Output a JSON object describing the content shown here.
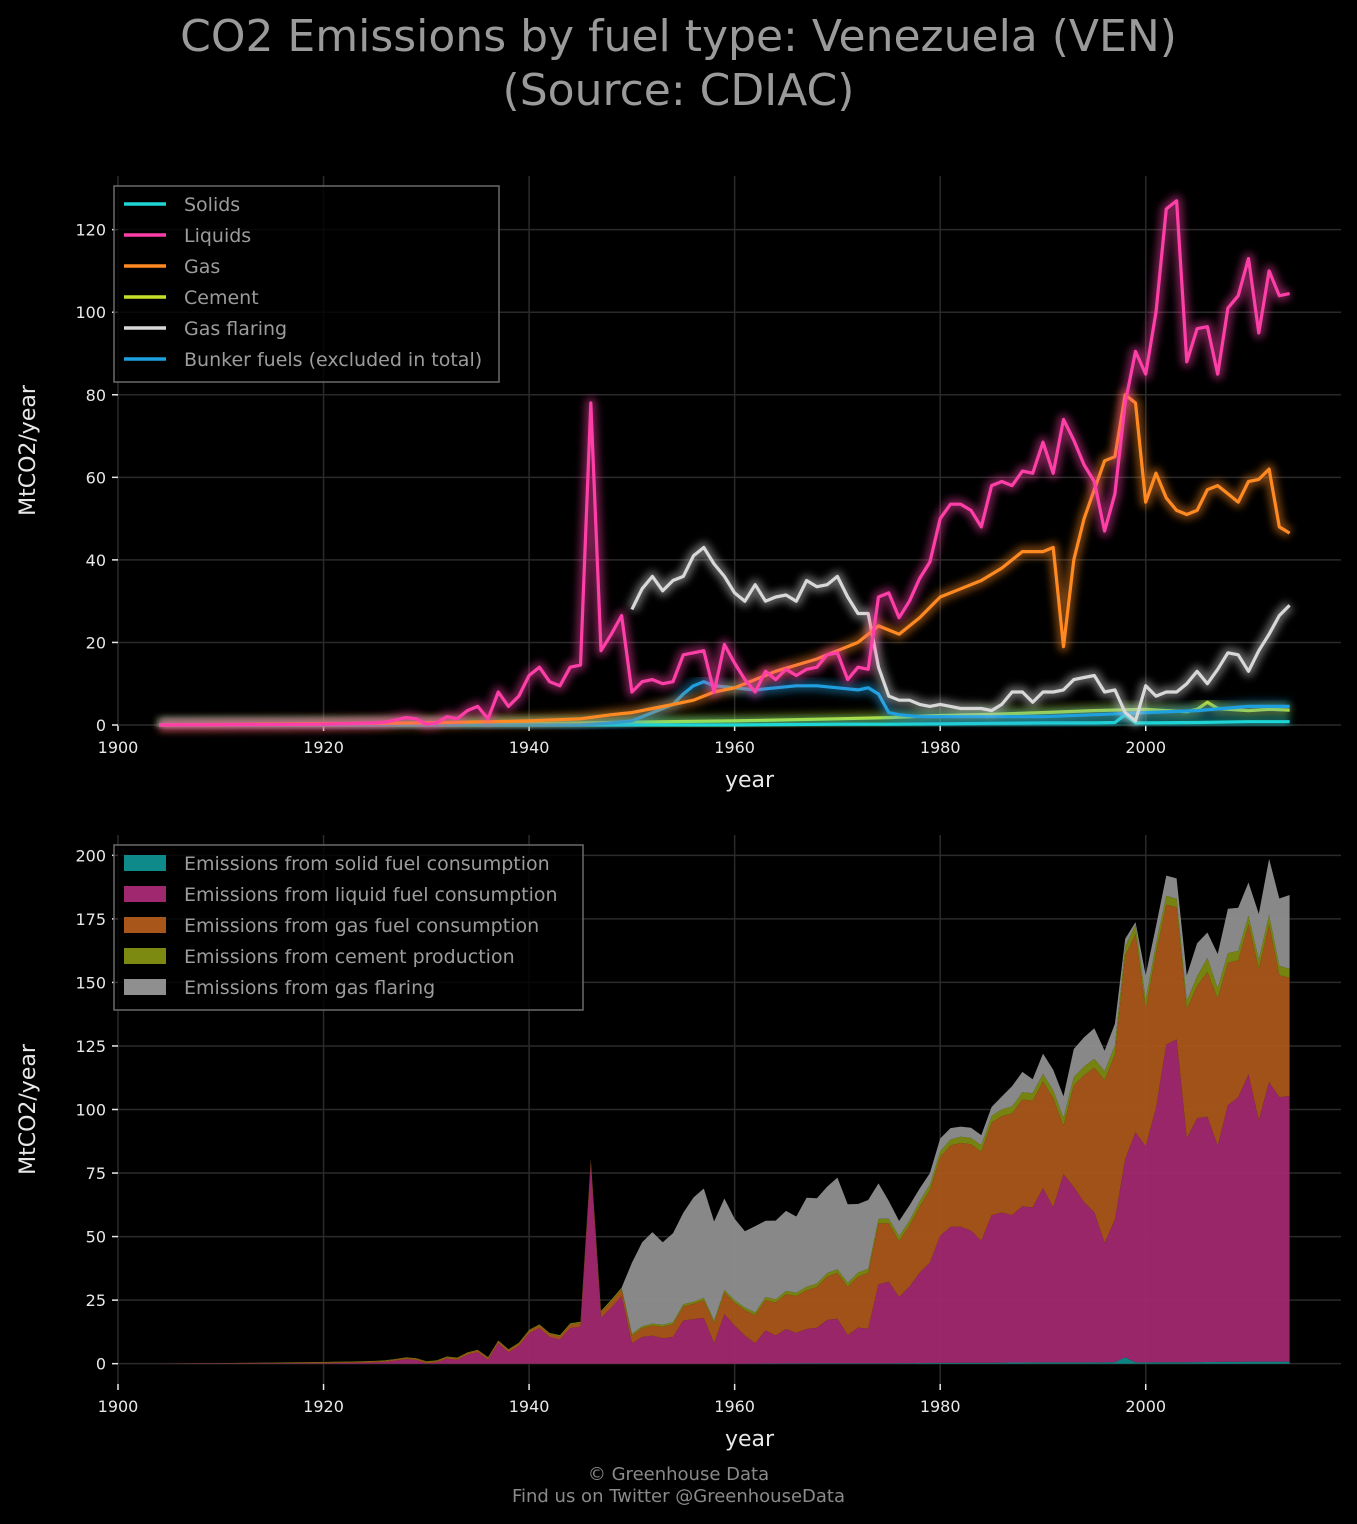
{
  "title": {
    "line1": "CO2 Emissions by fuel type: Venezuela (VEN)",
    "line2": "(Source: CDIAC)"
  },
  "footer": {
    "line1": "© Greenhouse Data",
    "line2": "Find us on Twitter @GreenhouseData"
  },
  "colors": {
    "solids": "#1fd6d6",
    "liquids": "#ff3fa8",
    "gas": "#ff8a22",
    "cement": "#c6e02a",
    "flaring": "#d8d8d8",
    "bunker": "#1e9fe0",
    "area_solid": "#0e8a8a",
    "area_liquid": "#a0286e",
    "area_gas": "#a9561a",
    "area_cement": "#7c8a12",
    "area_flaring": "#8f8f8f",
    "grid": "#2a2a2a",
    "background": "#000000"
  },
  "chart_data": [
    {
      "type": "line",
      "xlabel": "year",
      "ylabel": "MtCO2/year",
      "xlim": [
        1900,
        2019
      ],
      "ylim": [
        0,
        133
      ],
      "xticks": [
        1900,
        1920,
        1940,
        1960,
        1980,
        2000
      ],
      "yticks": [
        0,
        20,
        40,
        60,
        80,
        100,
        120
      ],
      "grid": true,
      "legend_position": "top-left",
      "series": [
        {
          "name": "Solids",
          "color_key": "solids",
          "x": [
            1904,
            1940,
            1950,
            1960,
            1970,
            1975,
            1980,
            1985,
            1990,
            1995,
            1997,
            1998,
            1999,
            2000,
            2005,
            2010,
            2014
          ],
          "y": [
            0,
            0,
            0,
            0,
            0.2,
            0.2,
            0.3,
            0.4,
            0.5,
            0.5,
            0.6,
            2.5,
            0.5,
            0.5,
            0.6,
            0.8,
            0.8
          ]
        },
        {
          "name": "Liquids",
          "color_key": "liquids",
          "x": [
            1904,
            1920,
            1925,
            1926,
            1927,
            1928,
            1929,
            1930,
            1931,
            1932,
            1933,
            1934,
            1935,
            1936,
            1937,
            1938,
            1939,
            1940,
            1941,
            1942,
            1943,
            1944,
            1945,
            1946,
            1947,
            1948,
            1949,
            1950,
            1951,
            1952,
            1953,
            1954,
            1955,
            1956,
            1957,
            1958,
            1959,
            1960,
            1961,
            1962,
            1963,
            1964,
            1965,
            1966,
            1967,
            1968,
            1969,
            1970,
            1971,
            1972,
            1973,
            1974,
            1975,
            1976,
            1977,
            1978,
            1979,
            1980,
            1981,
            1982,
            1983,
            1984,
            1985,
            1986,
            1987,
            1988,
            1989,
            1990,
            1991,
            1992,
            1993,
            1994,
            1995,
            1996,
            1997,
            1998,
            1999,
            2000,
            2001,
            2002,
            2003,
            2004,
            2005,
            2006,
            2007,
            2008,
            2009,
            2010,
            2011,
            2012,
            2013,
            2014
          ],
          "y": [
            0,
            0.2,
            0.5,
            0.7,
            1.2,
            1.8,
            1.5,
            0.2,
            0.5,
            2,
            1.5,
            3.5,
            4.5,
            1.5,
            8,
            4.5,
            7,
            12,
            14,
            10.5,
            9.5,
            14,
            14.5,
            78,
            18,
            22,
            26.5,
            8,
            10.5,
            11,
            10,
            10.5,
            17,
            17.5,
            18,
            8,
            19.5,
            15,
            11,
            8,
            13,
            11,
            13.5,
            12,
            13.5,
            14,
            17,
            17.5,
            11,
            14,
            13.5,
            31,
            32,
            26,
            30,
            35.5,
            39.5,
            50,
            53.5,
            53.5,
            52,
            48,
            58,
            59,
            58,
            61.5,
            61,
            68.5,
            61,
            74,
            69,
            63,
            59,
            47,
            56,
            78,
            90.5,
            85,
            100,
            125,
            127,
            88,
            96,
            96.5,
            85,
            101,
            104,
            113,
            95,
            110,
            104,
            104.5
          ]
        },
        {
          "name": "Gas",
          "color_key": "gas",
          "x": [
            1904,
            1930,
            1940,
            1945,
            1948,
            1950,
            1952,
            1954,
            1956,
            1958,
            1960,
            1962,
            1964,
            1966,
            1968,
            1970,
            1972,
            1974,
            1976,
            1978,
            1980,
            1982,
            1984,
            1986,
            1988,
            1990,
            1991,
            1992,
            1993,
            1994,
            1995,
            1996,
            1997,
            1998,
            1999,
            2000,
            2001,
            2002,
            2003,
            2004,
            2005,
            2006,
            2007,
            2008,
            2009,
            2010,
            2011,
            2012,
            2013,
            2014
          ],
          "y": [
            0,
            0.5,
            1,
            1.5,
            2.5,
            3,
            4,
            5,
            6,
            8,
            9,
            11,
            13,
            14.5,
            16,
            18,
            20,
            24,
            22,
            26,
            31,
            33,
            35,
            38,
            42,
            42,
            43,
            19,
            40,
            50,
            57,
            64,
            65,
            80,
            78,
            54,
            61,
            55,
            52,
            51,
            52,
            57,
            58,
            56,
            54,
            59,
            59.5,
            62,
            48,
            46.5
          ]
        },
        {
          "name": "Cement",
          "color_key": "cement",
          "x": [
            1904,
            1940,
            1950,
            1960,
            1970,
            1975,
            1980,
            1985,
            1990,
            1995,
            2000,
            2004,
            2005,
            2006,
            2007,
            2008,
            2010,
            2012,
            2014
          ],
          "y": [
            0,
            0.3,
            0.7,
            1,
            1.5,
            1.8,
            2.3,
            2.6,
            3,
            3.5,
            3.8,
            3.2,
            3.8,
            5.5,
            4,
            3.8,
            3.5,
            3.8,
            3.6
          ]
        },
        {
          "name": "Gas flaring",
          "color_key": "flaring",
          "x": [
            1950,
            1951,
            1952,
            1953,
            1954,
            1955,
            1956,
            1957,
            1958,
            1959,
            1960,
            1961,
            1962,
            1963,
            1964,
            1965,
            1966,
            1967,
            1968,
            1969,
            1970,
            1971,
            1972,
            1973,
            1974,
            1975,
            1976,
            1977,
            1978,
            1979,
            1980,
            1981,
            1982,
            1983,
            1984,
            1985,
            1986,
            1987,
            1988,
            1989,
            1990,
            1991,
            1992,
            1993,
            1994,
            1995,
            1996,
            1997,
            1998,
            1999,
            2000,
            2001,
            2002,
            2003,
            2004,
            2005,
            2006,
            2007,
            2008,
            2009,
            2010,
            2011,
            2012,
            2013,
            2014
          ],
          "y": [
            28,
            33,
            36,
            32.5,
            35,
            36,
            41,
            43,
            39,
            36,
            32,
            30,
            34,
            30,
            31,
            31.5,
            30,
            35,
            33.5,
            34,
            36,
            31,
            27,
            27,
            14,
            7,
            6,
            6,
            5,
            4.5,
            5,
            4.5,
            4,
            4,
            4,
            3.5,
            5,
            8,
            8,
            5.5,
            8,
            8,
            8.5,
            11,
            11.5,
            12,
            8,
            8.5,
            3,
            1,
            9.5,
            7,
            8,
            8,
            10,
            13,
            10,
            13.5,
            17.5,
            17,
            13,
            18,
            22,
            26.5,
            29
          ]
        },
        {
          "name": "Bunker fuels (excluded in total)",
          "color_key": "bunker",
          "x": [
            1904,
            1945,
            1948,
            1950,
            1952,
            1954,
            1955,
            1956,
            1957,
            1958,
            1960,
            1962,
            1964,
            1966,
            1968,
            1970,
            1972,
            1973,
            1974,
            1975,
            1976,
            1978,
            1980,
            1985,
            1990,
            1995,
            2000,
            2005,
            2010,
            2014
          ],
          "y": [
            0,
            0,
            0.5,
            1,
            3,
            5,
            7.5,
            9.5,
            10.5,
            9.5,
            9,
            8.5,
            9,
            9.5,
            9.5,
            9,
            8.5,
            9,
            7.5,
            3,
            2.5,
            2,
            2,
            2,
            2,
            2.5,
            3,
            3.5,
            4.5,
            4.5
          ]
        }
      ]
    },
    {
      "type": "area",
      "stacked": true,
      "xlabel": "year",
      "ylabel": "MtCO2/year",
      "xlim": [
        1900,
        2019
      ],
      "ylim": [
        -8,
        208
      ],
      "xticks": [
        1900,
        1920,
        1940,
        1960,
        1980,
        2000
      ],
      "yticks": [
        0,
        25,
        50,
        75,
        100,
        125,
        150,
        175,
        200
      ],
      "grid": true,
      "legend_position": "top-left",
      "series": [
        {
          "name": "Emissions from solid fuel consumption",
          "color_key": "area_solid",
          "source": "Solids"
        },
        {
          "name": "Emissions from liquid fuel consumption",
          "color_key": "area_liquid",
          "source": "Liquids"
        },
        {
          "name": "Emissions from gas fuel consumption",
          "color_key": "area_gas",
          "source": "Gas"
        },
        {
          "name": "Emissions from cement production",
          "color_key": "area_cement",
          "source": "Cement"
        },
        {
          "name": "Emissions from gas flaring",
          "color_key": "area_flaring",
          "source": "Gas flaring"
        }
      ]
    }
  ]
}
